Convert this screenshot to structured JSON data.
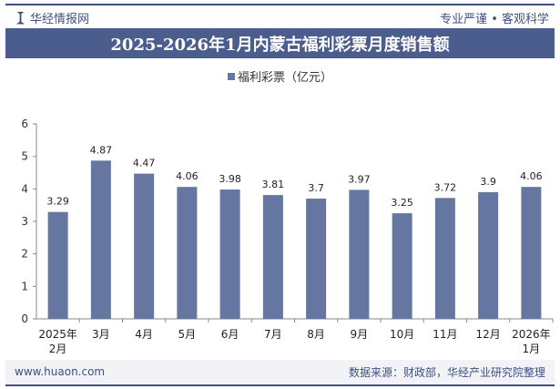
{
  "header": {
    "brand": "华经情报网",
    "motto": "专业严谨 • 客观科学",
    "title": "2025-2026年1月内蒙古福利彩票月度销售额"
  },
  "footer": {
    "url": "www.huaon.com",
    "source": "数据来源：财政部，华经产业研究院整理"
  },
  "chart_data": {
    "type": "bar",
    "title": "2025-2026年1月内蒙古福利彩票月度销售额",
    "categories": [
      "2025年\n2月",
      "3月",
      "4月",
      "5月",
      "6月",
      "7月",
      "8月",
      "9月",
      "10月",
      "11月",
      "12月",
      "2026年\n1月"
    ],
    "series": [
      {
        "name": "福利彩票（亿元）",
        "values": [
          3.29,
          4.87,
          4.47,
          4.06,
          3.98,
          3.81,
          3.7,
          3.97,
          3.25,
          3.72,
          3.9,
          4.06
        ],
        "color": "#6577a0"
      }
    ],
    "ylim": [
      0,
      6
    ],
    "yticks": [
      0,
      1,
      2,
      3,
      4,
      5,
      6
    ],
    "legend": "top-center",
    "grid": false
  }
}
